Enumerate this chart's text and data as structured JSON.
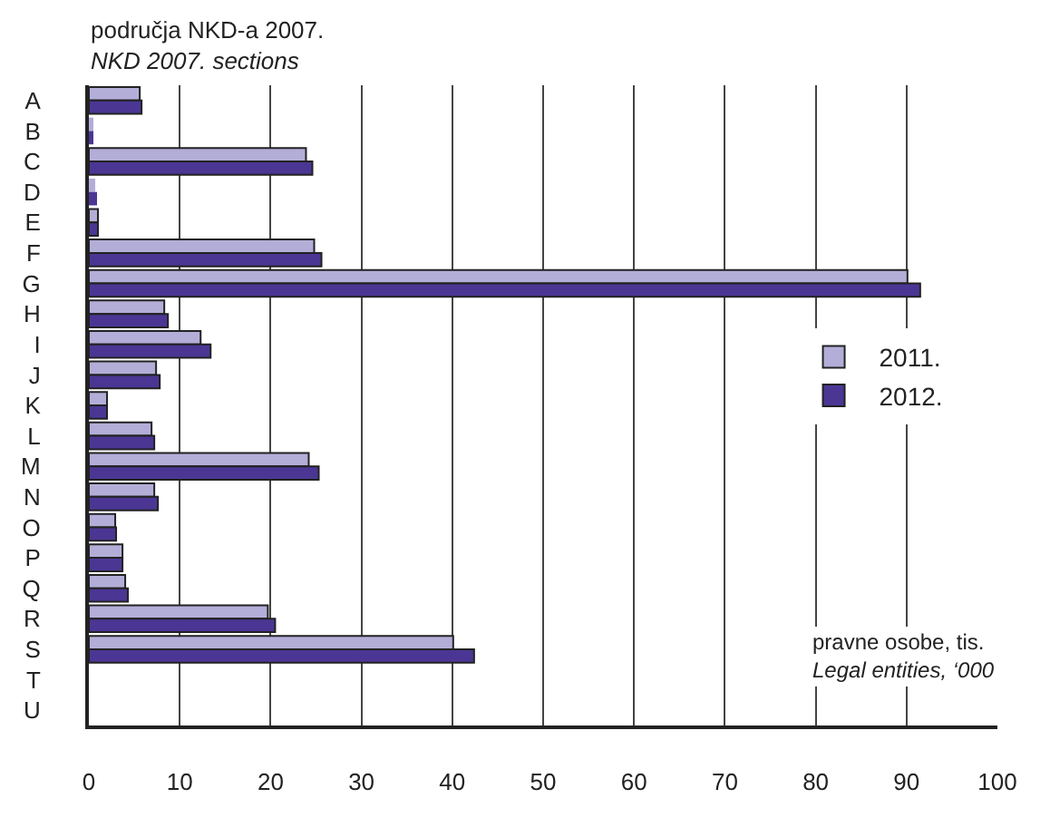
{
  "chart_data": {
    "type": "bar",
    "orientation": "horizontal",
    "title": "područja NKD-a 2007.",
    "subtitle": "NKD 2007. sections",
    "categories": [
      "A",
      "B",
      "C",
      "D",
      "E",
      "F",
      "G",
      "H",
      "I",
      "J",
      "K",
      "L",
      "M",
      "N",
      "O",
      "P",
      "Q",
      "R",
      "S",
      "T",
      "U"
    ],
    "series": [
      {
        "name": "2011.",
        "color": "#b3aed8",
        "values": [
          5.6,
          0.5,
          23.9,
          0.7,
          1.0,
          24.8,
          90.1,
          8.3,
          12.3,
          7.4,
          2.0,
          6.9,
          24.2,
          7.2,
          2.9,
          3.7,
          4.0,
          19.7,
          40.1,
          null,
          null
        ]
      },
      {
        "name": "2012.",
        "color": "#4b3694",
        "values": [
          5.8,
          0.5,
          24.6,
          0.9,
          1.0,
          25.6,
          91.5,
          8.7,
          13.4,
          7.8,
          2.0,
          7.2,
          25.3,
          7.6,
          3.0,
          3.7,
          4.3,
          20.5,
          42.4,
          null,
          null
        ]
      }
    ],
    "xlim": [
      0,
      100
    ],
    "xticks": [
      0,
      10,
      20,
      30,
      40,
      50,
      60,
      70,
      80,
      90,
      100
    ],
    "grid": "x",
    "legend": "right",
    "annotations": [
      "pravne osobe, tis.",
      "Legal entities, ‘000"
    ]
  }
}
